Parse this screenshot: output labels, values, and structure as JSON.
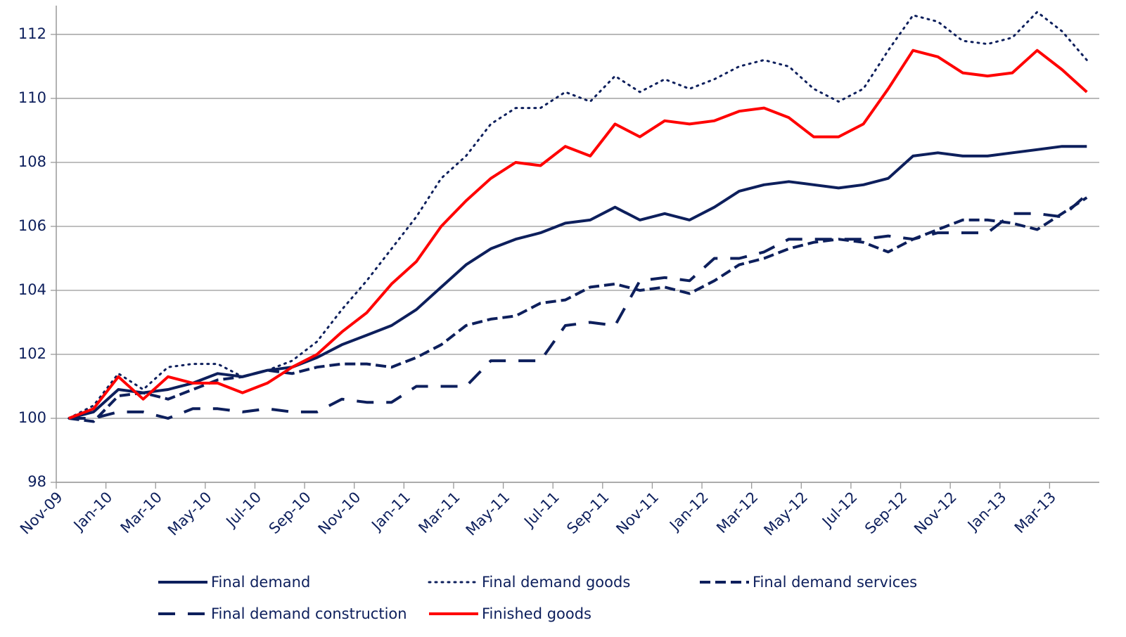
{
  "chart_data": {
    "type": "line",
    "categories": [
      "Nov-09",
      null,
      "Jan-10",
      null,
      "Mar-10",
      null,
      "May-10",
      null,
      "Jul-10",
      null,
      "Sep-10",
      null,
      "Nov-10",
      null,
      "Jan-11",
      null,
      "Mar-11",
      null,
      "May-11",
      null,
      "Jul-11",
      null,
      "Sep-11",
      null,
      "Nov-11",
      null,
      "Jan-12",
      null,
      "Mar-12",
      null,
      "May-12",
      null,
      "Jul-12",
      null,
      "Sep-12",
      null,
      "Nov-12",
      null,
      "Jan-13",
      null,
      "Mar-13",
      null
    ],
    "series": [
      {
        "name": "Final demand",
        "color": "#0d1f5c",
        "style": "solid",
        "values": [
          100,
          100.2,
          100.9,
          100.8,
          100.9,
          101.1,
          101.4,
          101.3,
          101.5,
          101.6,
          101.9,
          102.3,
          102.6,
          102.9,
          103.4,
          104.1,
          104.8,
          105.3,
          105.6,
          105.8,
          106.1,
          106.2,
          106.6,
          106.2,
          106.4,
          106.2,
          106.6,
          107.1,
          107.3,
          107.4,
          107.3,
          107.2,
          107.3,
          107.5,
          108.2,
          108.3,
          108.2,
          108.2,
          108.3,
          108.4,
          108.5,
          108.5
        ]
      },
      {
        "name": "Final demand goods",
        "color": "#0d1f5c",
        "style": "dotted",
        "values": [
          100,
          100.4,
          101.4,
          100.9,
          101.6,
          101.7,
          101.7,
          101.3,
          101.5,
          101.8,
          102.4,
          103.4,
          104.3,
          105.3,
          106.3,
          107.5,
          108.2,
          109.2,
          109.7,
          109.7,
          110.2,
          109.9,
          110.7,
          110.2,
          110.6,
          110.3,
          110.6,
          111.0,
          111.2,
          111.0,
          110.3,
          109.9,
          110.3,
          111.5,
          112.6,
          112.4,
          111.8,
          111.7,
          111.9,
          112.7,
          112.1,
          111.2
        ]
      },
      {
        "name": "Final demand services",
        "color": "#0d1f5c",
        "style": "dashed",
        "values": [
          100,
          99.9,
          100.7,
          100.8,
          100.6,
          100.9,
          101.2,
          101.3,
          101.5,
          101.4,
          101.6,
          101.7,
          101.7,
          101.6,
          101.9,
          102.3,
          102.9,
          103.1,
          103.2,
          103.6,
          103.7,
          104.1,
          104.2,
          104.0,
          104.1,
          103.9,
          104.3,
          104.8,
          105.0,
          105.3,
          105.5,
          105.6,
          105.5,
          105.2,
          105.6,
          105.9,
          106.2,
          106.2,
          106.1,
          105.9,
          106.4,
          106.9
        ]
      },
      {
        "name": "Final demand construction",
        "color": "#0d1f5c",
        "style": "long-dashed",
        "values": [
          100,
          100,
          100.2,
          100.2,
          100,
          100.3,
          100.3,
          100.2,
          100.3,
          100.2,
          100.2,
          100.6,
          100.5,
          100.5,
          101.0,
          101.0,
          101.0,
          101.8,
          101.8,
          101.8,
          102.9,
          103.0,
          102.9,
          104.3,
          104.4,
          104.3,
          105.0,
          105.0,
          105.2,
          105.6,
          105.6,
          105.6,
          105.6,
          105.7,
          105.6,
          105.8,
          105.8,
          105.8,
          106.4,
          106.4,
          106.3,
          107.0
        ]
      },
      {
        "name": "Finished goods",
        "color": "#ff0000",
        "style": "solid",
        "values": [
          100,
          100.3,
          101.3,
          100.6,
          101.3,
          101.1,
          101.1,
          100.8,
          101.1,
          101.6,
          102.0,
          102.7,
          103.3,
          104.2,
          104.9,
          106.0,
          106.8,
          107.5,
          108.0,
          107.9,
          108.5,
          108.2,
          109.2,
          108.8,
          109.3,
          109.2,
          109.3,
          109.6,
          109.7,
          109.4,
          108.8,
          108.8,
          109.2,
          110.3,
          111.5,
          111.3,
          110.8,
          110.7,
          110.8,
          111.5,
          110.9,
          110.2
        ]
      }
    ],
    "ylim": [
      98,
      112.9
    ],
    "yticks": [
      98,
      100,
      102,
      104,
      106,
      108,
      110,
      112
    ],
    "grid": true,
    "legend": "bottom"
  }
}
